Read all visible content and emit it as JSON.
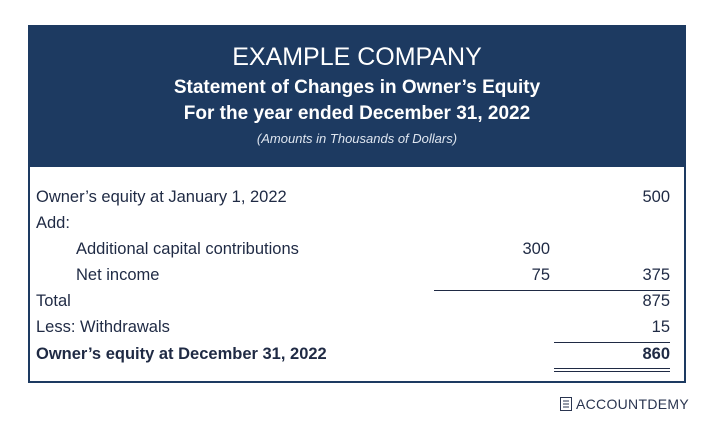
{
  "header": {
    "title": "EXAMPLE COMPANY",
    "subtitle": "Statement of Changes in Owner’s Equity",
    "period": "For the year ended December 31, 2022",
    "note": "(Amounts in Thousands of Dollars)"
  },
  "table": {
    "rows": [
      {
        "label": "Owner’s equity at January 1, 2022",
        "total": 500
      },
      {
        "label": "Add:"
      },
      {
        "label": "Additional capital contributions",
        "amount": 300
      },
      {
        "label": "Net income",
        "amount": 75,
        "total": 375
      },
      {
        "label": "Total",
        "total": 875
      },
      {
        "label": "Less: Withdrawals",
        "total": 15
      },
      {
        "label": "Owner’s equity at December 31, 2022",
        "total": 860
      }
    ]
  },
  "footer": {
    "brand": "ACCOUNTDEMY"
  }
}
